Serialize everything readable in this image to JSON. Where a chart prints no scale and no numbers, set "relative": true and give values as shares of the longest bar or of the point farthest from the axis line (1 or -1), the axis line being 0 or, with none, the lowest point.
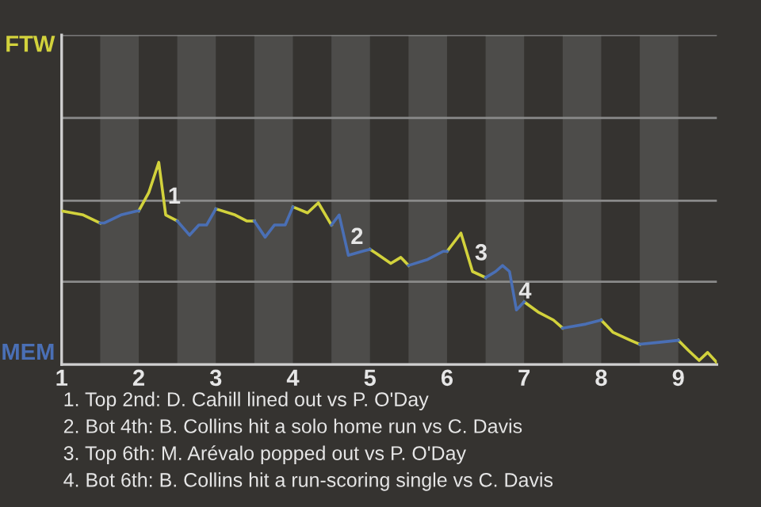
{
  "chart_data": {
    "type": "line",
    "relative": true,
    "xlim": [
      1,
      9.5
    ],
    "xticks": [
      1,
      2,
      3,
      4,
      5,
      6,
      7,
      8,
      9
    ],
    "marker": "none",
    "line_style": "solid",
    "series": [
      {
        "color": "#d2d23c",
        "x": [
          1.0,
          1.28,
          1.5,
          null,
          2.0,
          2.13,
          2.26,
          2.35,
          2.5,
          null,
          3.0,
          3.25,
          3.4,
          3.5,
          null,
          4.0,
          4.19,
          4.33,
          4.5,
          null,
          5.0,
          5.08,
          5.27,
          5.4,
          5.5,
          null,
          6.0,
          6.18,
          6.33,
          6.5,
          null,
          7.0,
          7.18,
          7.38,
          7.5,
          null,
          8.0,
          8.15,
          8.38,
          8.5,
          null,
          9.0,
          9.13,
          9.27,
          9.38,
          9.5
        ],
        "values": [
          0.76,
          0.74,
          0.7,
          null,
          0.76,
          0.85,
          1,
          0.74,
          0.71,
          null,
          0.77,
          0.74,
          0.71,
          0.71,
          null,
          0.78,
          0.75,
          0.8,
          0.69,
          null,
          0.57,
          0.55,
          0.5,
          0.53,
          0.49,
          null,
          0.56,
          0.65,
          0.46,
          0.43,
          null,
          0.31,
          0.26,
          0.22,
          0.18,
          null,
          0.22,
          0.16,
          0.12,
          0.1,
          null,
          0.12,
          0.07,
          0.02,
          0.06,
          0.01
        ]
      },
      {
        "color": "#4a6fb5",
        "x": [
          1.5,
          1.55,
          1.77,
          1.98,
          2.0,
          null,
          2.5,
          2.66,
          2.78,
          2.88,
          3.0,
          null,
          3.5,
          3.64,
          3.76,
          3.9,
          4.0,
          null,
          4.5,
          4.6,
          4.72,
          4.9,
          5.0,
          null,
          5.5,
          5.75,
          5.95,
          6.0,
          null,
          6.5,
          6.63,
          6.72,
          6.81,
          6.9,
          7.0,
          null,
          7.5,
          7.8,
          8.0,
          null,
          8.5,
          8.75,
          9.0
        ],
        "values": [
          0.7,
          0.7,
          0.74,
          0.76,
          0.76,
          null,
          0.71,
          0.64,
          0.69,
          0.69,
          0.77,
          null,
          0.71,
          0.63,
          0.69,
          0.69,
          0.78,
          null,
          0.69,
          0.74,
          0.54,
          0.56,
          0.57,
          null,
          0.49,
          0.52,
          0.56,
          0.56,
          null,
          0.43,
          0.46,
          0.49,
          0.46,
          0.27,
          0.31,
          null,
          0.18,
          0.2,
          0.22,
          null,
          0.1,
          0.11,
          0.12
        ]
      }
    ],
    "ref_lines": [
      {
        "axis": "y",
        "value": 0,
        "label": "MEM",
        "color": "#8a8a8a"
      },
      {
        "axis": "y",
        "value": 0.41,
        "label": null,
        "color": "#8a8a8a"
      },
      {
        "axis": "y",
        "value": 0.81,
        "label": null,
        "color": "#8a8a8a"
      },
      {
        "axis": "y",
        "value": 1.22,
        "label": null,
        "color": "#8a8a8a"
      },
      {
        "axis": "y",
        "value": 1.63,
        "label": "FTW",
        "color": "#8a8a8a"
      }
    ],
    "bands": [
      {
        "axis": "x",
        "from": 1.5,
        "to": 2,
        "label": null,
        "color": "#4d4c4a"
      },
      {
        "axis": "x",
        "from": 2.5,
        "to": 3,
        "label": null,
        "color": "#4d4c4a"
      },
      {
        "axis": "x",
        "from": 3.5,
        "to": 4,
        "label": null,
        "color": "#4d4c4a"
      },
      {
        "axis": "x",
        "from": 4.5,
        "to": 5,
        "label": null,
        "color": "#4d4c4a"
      },
      {
        "axis": "x",
        "from": 5.5,
        "to": 6,
        "label": null,
        "color": "#4d4c4a"
      },
      {
        "axis": "x",
        "from": 6.5,
        "to": 7,
        "label": null,
        "color": "#4d4c4a"
      },
      {
        "axis": "x",
        "from": 7.5,
        "to": 8,
        "label": null,
        "color": "#4d4c4a"
      },
      {
        "axis": "x",
        "from": 8.5,
        "to": 9,
        "label": null,
        "color": "#4d4c4a"
      }
    ],
    "annotations": [
      {
        "text": "1",
        "x": 2.35,
        "y": 0.74
      },
      {
        "text": "2",
        "x": 4.72,
        "y": 0.54
      },
      {
        "text": "3",
        "x": 6.33,
        "y": 0.46
      },
      {
        "text": "4",
        "x": 6.9,
        "y": 0.27
      },
      "1. Top 2nd: D. Cahill lined out vs P. O'Day",
      "2. Bot 4th: B. Collins hit a solo home run vs C. Davis",
      "3. Top 6th: M. Arévalo popped out vs P. O'Day",
      "4. Bot 6th: B. Collins hit a run-scoring single vs C. Davis"
    ]
  }
}
